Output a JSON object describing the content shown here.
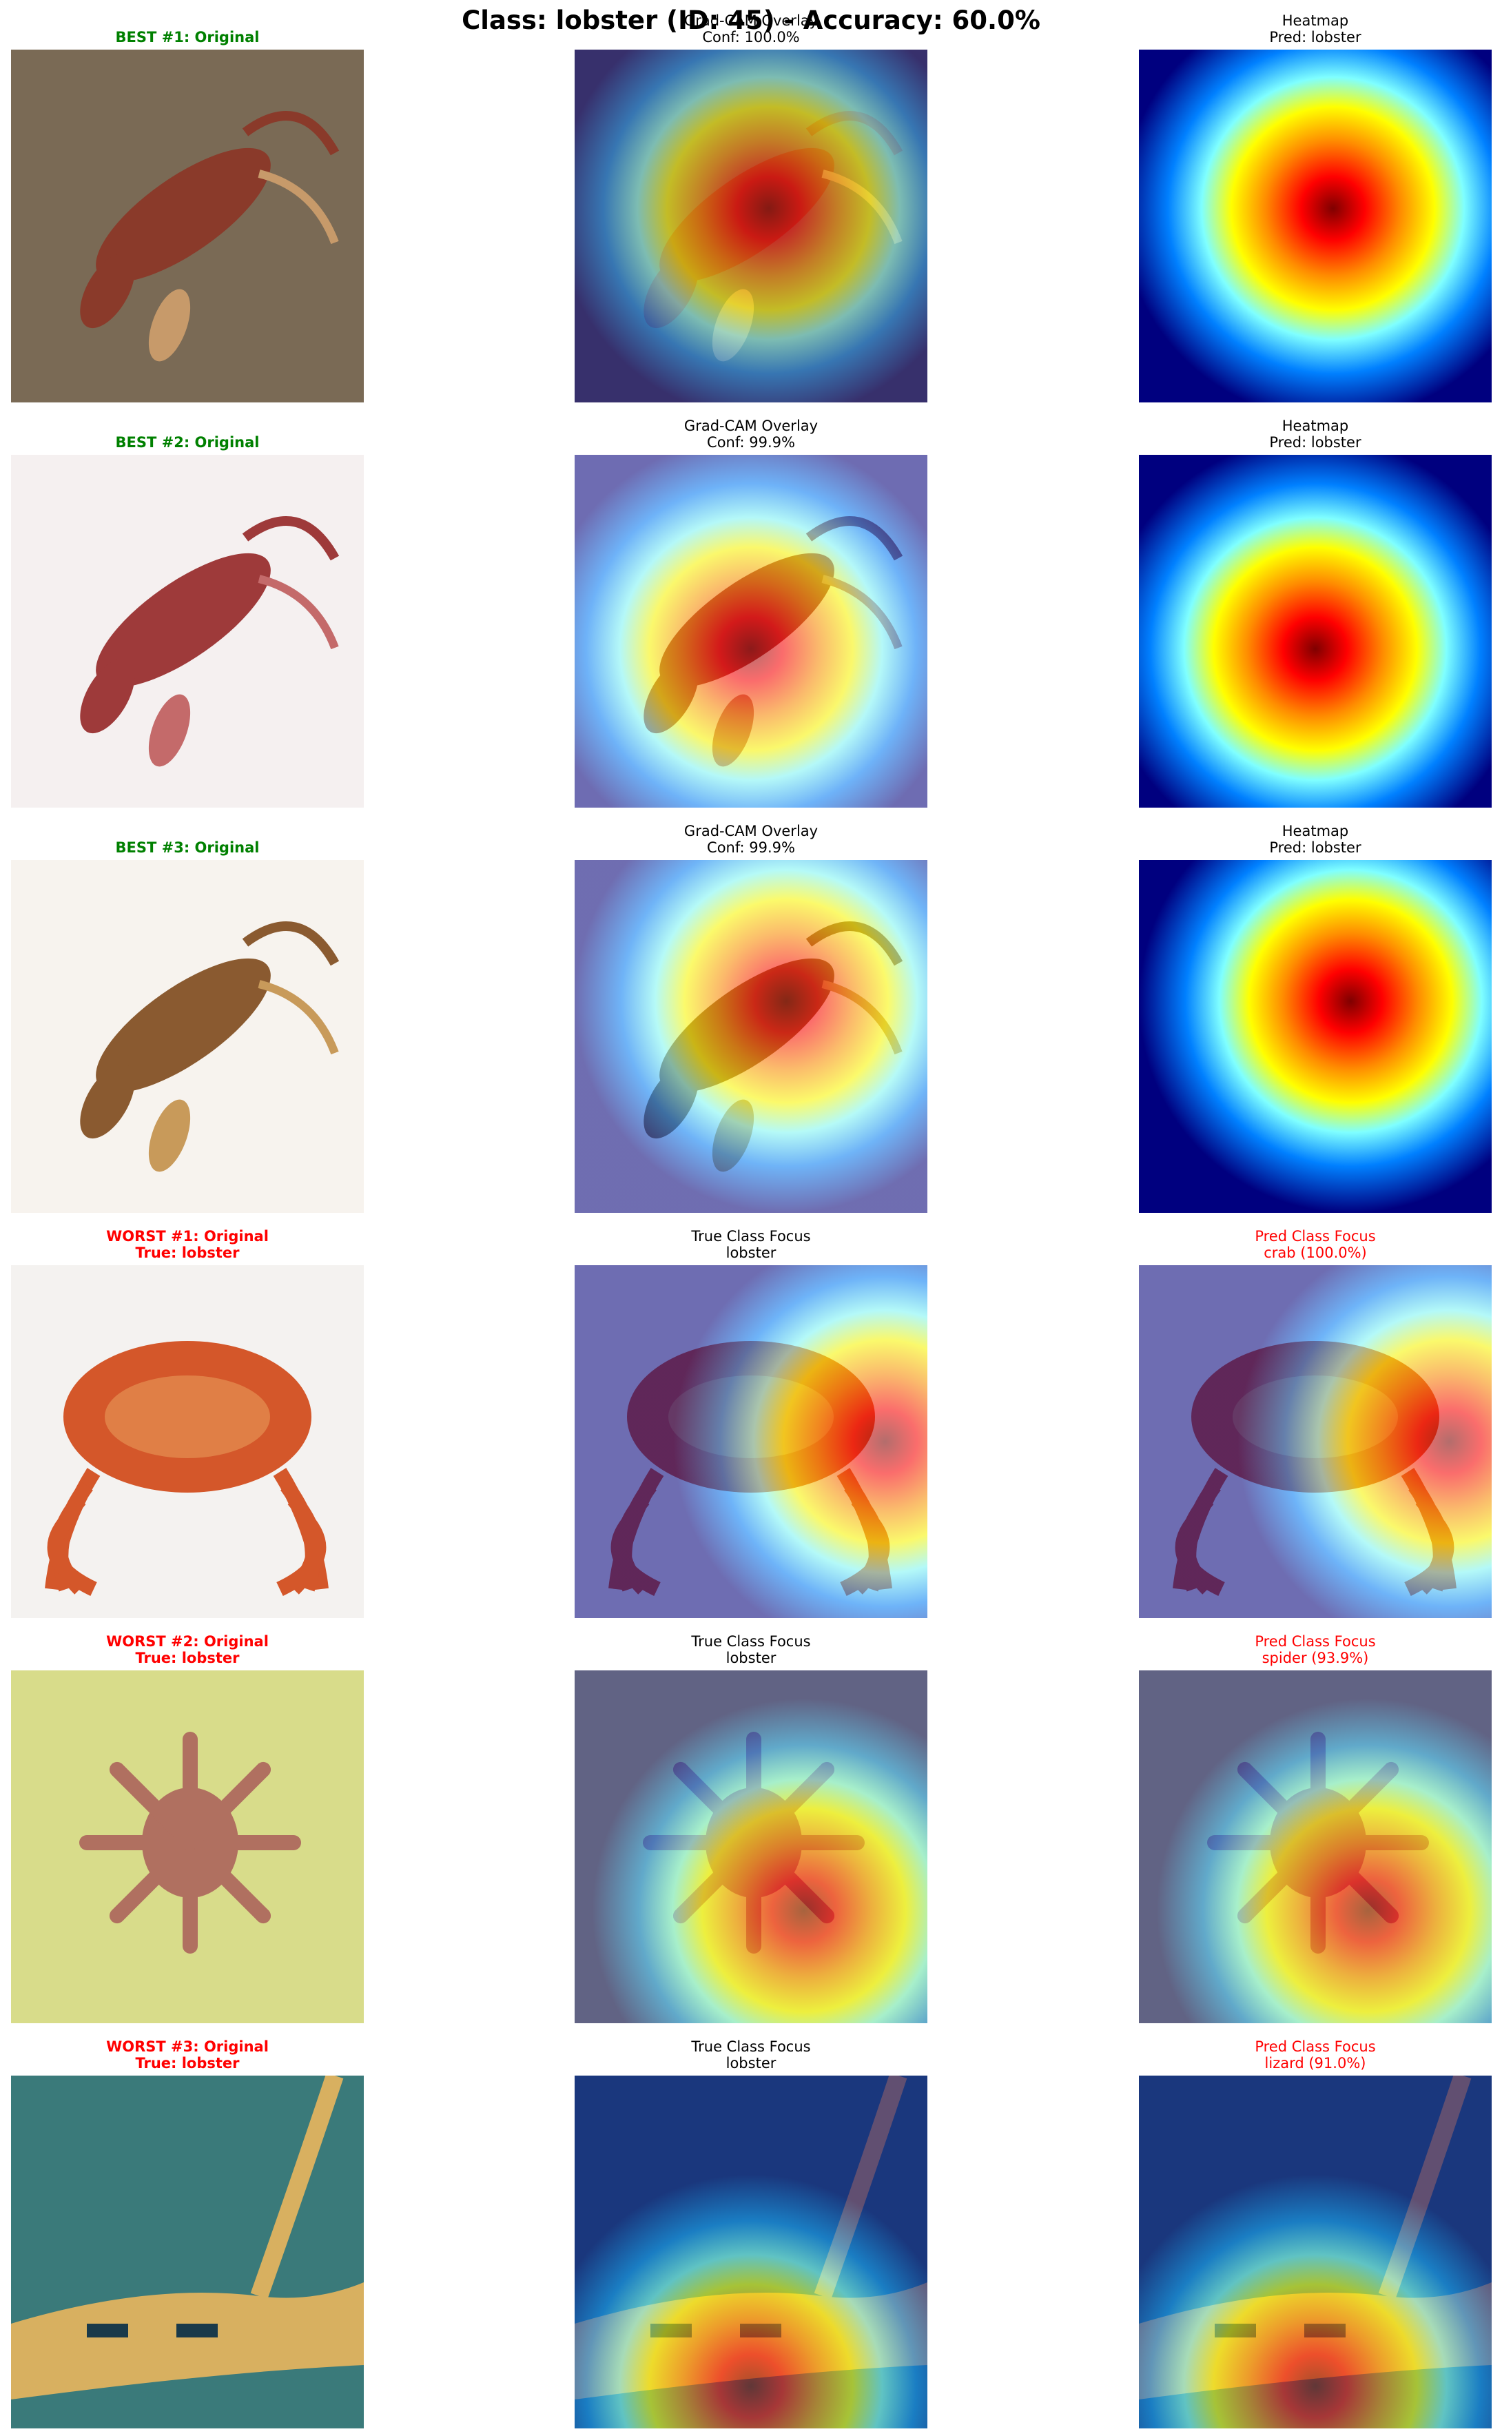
{
  "figure": {
    "title": "Class: lobster (ID: 45) - Accuracy: 60.0%"
  },
  "rows": [
    {
      "titles": [
        {
          "lines": [
            "BEST #1: Original"
          ],
          "style": "bold green"
        },
        {
          "lines": [
            "Grad-CAM Overlay",
            "Conf: 100.0%"
          ],
          "style": ""
        },
        {
          "lines": [
            "Heatmap",
            "Pred: lobster"
          ],
          "style": ""
        }
      ],
      "subject": "lobster",
      "image_colors": {
        "bg": "#7a6a55",
        "subject": "#8a3a2a",
        "accent": "#c79a6a"
      },
      "heat_focus": "center"
    },
    {
      "titles": [
        {
          "lines": [
            "BEST #2: Original"
          ],
          "style": "bold green"
        },
        {
          "lines": [
            "Grad-CAM Overlay",
            "Conf: 99.9%"
          ],
          "style": ""
        },
        {
          "lines": [
            "Heatmap",
            "Pred: lobster"
          ],
          "style": ""
        }
      ],
      "subject": "lobster",
      "image_colors": {
        "bg": "#f5f0f0",
        "subject": "#9e3a3a",
        "accent": "#c46a6a"
      },
      "heat_focus": "center-left"
    },
    {
      "titles": [
        {
          "lines": [
            "BEST #3: Original"
          ],
          "style": "bold green"
        },
        {
          "lines": [
            "Grad-CAM Overlay",
            "Conf: 99.9%"
          ],
          "style": ""
        },
        {
          "lines": [
            "Heatmap",
            "Pred: lobster"
          ],
          "style": ""
        }
      ],
      "subject": "lobster",
      "image_colors": {
        "bg": "#f7f3ee",
        "subject": "#8a5a30",
        "accent": "#c89a5a"
      },
      "heat_focus": "upper-center"
    },
    {
      "titles": [
        {
          "lines": [
            "WORST #1: Original",
            "True: lobster"
          ],
          "style": "bold red"
        },
        {
          "lines": [
            "True Class Focus",
            "lobster"
          ],
          "style": ""
        },
        {
          "lines": [
            "Pred Class Focus",
            "crab (100.0%)"
          ],
          "style": "red"
        }
      ],
      "subject": "crab",
      "image_colors": {
        "bg": "#f4f2f0",
        "subject": "#d4572a",
        "accent": "#e89a5a"
      },
      "heat_focus": "right"
    },
    {
      "titles": [
        {
          "lines": [
            "WORST #2: Original",
            "True: lobster"
          ],
          "style": "bold red"
        },
        {
          "lines": [
            "True Class Focus",
            "lobster"
          ],
          "style": ""
        },
        {
          "lines": [
            "Pred Class Focus",
            "spider (93.9%)"
          ],
          "style": "red"
        }
      ],
      "subject": "spider",
      "image_colors": {
        "bg": "#d8dc8a",
        "subject": "#b07060",
        "accent": "#8a8a2a"
      },
      "heat_focus": "lower-right"
    },
    {
      "titles": [
        {
          "lines": [
            "WORST #3: Original",
            "True: lobster"
          ],
          "style": "bold red"
        },
        {
          "lines": [
            "True Class Focus",
            "lobster"
          ],
          "style": ""
        },
        {
          "lines": [
            "Pred Class Focus",
            "lizard (91.0%)"
          ],
          "style": "red"
        }
      ],
      "subject": "lizard",
      "image_colors": {
        "bg": "#3a7a7a",
        "subject": "#d8b060",
        "accent": "#1a3a4a"
      },
      "heat_focus": "bottom-center"
    }
  ]
}
